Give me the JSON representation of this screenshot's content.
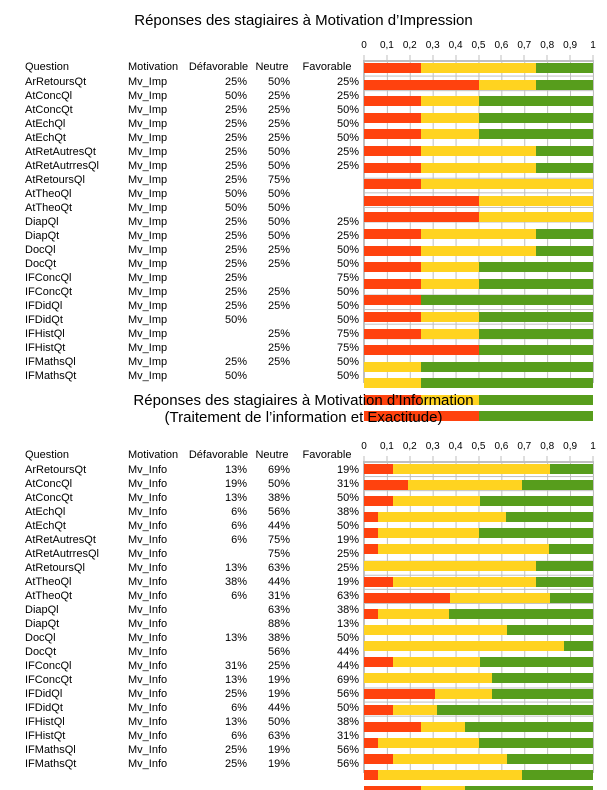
{
  "palette": {
    "defavorable": "#FF420E",
    "neutre": "#FFD320",
    "favorable": "#579D1C",
    "grid": "#BFBFBF"
  },
  "columns": {
    "question": "Question",
    "motivation": "Motivation",
    "defavorable": "Défavorable",
    "neutre": "Neutre",
    "favorable": "Favorable"
  },
  "chart_data": [
    {
      "type": "bar",
      "stacked": true,
      "orientation": "horizontal",
      "title_lines": [
        "Réponses des stagiaires à Motivation d’Impression"
      ],
      "motivation": "Mv_Imp",
      "xlim": [
        0,
        1
      ],
      "xticks": [
        "0",
        "0,1",
        "0,2",
        "0,3",
        "0,4",
        "0,5",
        "0,6",
        "0,7",
        "0,8",
        "0,9",
        "1"
      ],
      "grid": true,
      "categories": [
        "ArRetoursQt",
        "AtConcQl",
        "AtConcQt",
        "AtEchQl",
        "AtEchQt",
        "AtRetAutresQt",
        "AtRetAutrresQl",
        "AtRetoursQl",
        "AtTheoQl",
        "AtTheoQt",
        "DiapQl",
        "DiapQt",
        "DocQl",
        "DocQt",
        "IFConcQl",
        "IFConcQt",
        "IFDidQl",
        "IFDidQt",
        "IFHistQl",
        "IFHistQt",
        "IFMathsQl",
        "IFMathsQt"
      ],
      "series": [
        {
          "name": "Défavorable",
          "color": "#FF420E",
          "values": [
            25,
            50,
            25,
            25,
            25,
            25,
            25,
            25,
            50,
            50,
            25,
            25,
            25,
            25,
            25,
            25,
            25,
            50,
            null,
            null,
            25,
            50
          ]
        },
        {
          "name": "Neutre",
          "color": "#FFD320",
          "values": [
            50,
            25,
            25,
            25,
            25,
            50,
            50,
            75,
            50,
            50,
            50,
            50,
            25,
            25,
            null,
            25,
            25,
            null,
            25,
            25,
            25,
            null
          ]
        },
        {
          "name": "Favorable",
          "color": "#579D1C",
          "values": [
            25,
            25,
            50,
            50,
            50,
            25,
            25,
            null,
            null,
            null,
            25,
            25,
            50,
            50,
            75,
            50,
            50,
            50,
            75,
            75,
            50,
            50
          ]
        }
      ]
    },
    {
      "type": "bar",
      "stacked": true,
      "orientation": "horizontal",
      "title_lines": [
        "Réponses des stagiaires à Motivation d’Information",
        "(Traitement de l’information et Exactitude)"
      ],
      "motivation": "Mv_Info",
      "xlim": [
        0,
        1
      ],
      "xticks": [
        "0",
        "0,1",
        "0,2",
        "0,3",
        "0,4",
        "0,5",
        "0,6",
        "0,7",
        "0,8",
        "0,9",
        "1"
      ],
      "grid": true,
      "categories": [
        "ArRetoursQt",
        "AtConcQl",
        "AtConcQt",
        "AtEchQl",
        "AtEchQt",
        "AtRetAutresQt",
        "AtRetAutrresQl",
        "AtRetoursQl",
        "AtTheoQl",
        "AtTheoQt",
        "DiapQl",
        "DiapQt",
        "DocQl",
        "DocQt",
        "IFConcQl",
        "IFConcQt",
        "IFDidQl",
        "IFDidQt",
        "IFHistQl",
        "IFHistQt",
        "IFMathsQl",
        "IFMathsQt"
      ],
      "series": [
        {
          "name": "Défavorable",
          "color": "#FF420E",
          "values": [
            13,
            19,
            13,
            6,
            6,
            6,
            null,
            13,
            38,
            6,
            null,
            null,
            13,
            null,
            31,
            13,
            25,
            6,
            13,
            6,
            25,
            25
          ]
        },
        {
          "name": "Neutre",
          "color": "#FFD320",
          "values": [
            69,
            50,
            38,
            56,
            44,
            75,
            75,
            63,
            44,
            31,
            63,
            88,
            38,
            56,
            25,
            19,
            19,
            44,
            50,
            63,
            19,
            19
          ]
        },
        {
          "name": "Favorable",
          "color": "#579D1C",
          "values": [
            19,
            31,
            50,
            38,
            50,
            19,
            25,
            25,
            19,
            63,
            38,
            13,
            50,
            44,
            44,
            69,
            56,
            50,
            38,
            31,
            56,
            56
          ]
        }
      ]
    }
  ]
}
